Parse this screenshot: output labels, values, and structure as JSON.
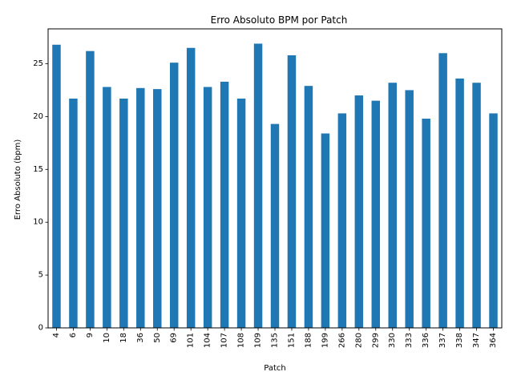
{
  "chart_data": {
    "type": "bar",
    "title": "Erro Absoluto BPM por Patch",
    "xlabel": "Patch",
    "ylabel": "Erro Absoluto (bpm)",
    "categories": [
      "4",
      "6",
      "9",
      "10",
      "18",
      "36",
      "50",
      "69",
      "101",
      "104",
      "107",
      "108",
      "109",
      "135",
      "151",
      "188",
      "199",
      "266",
      "280",
      "299",
      "330",
      "333",
      "336",
      "337",
      "338",
      "347",
      "364"
    ],
    "values": [
      26.8,
      21.7,
      26.2,
      22.8,
      21.7,
      22.7,
      22.6,
      25.1,
      26.5,
      22.8,
      23.3,
      21.7,
      26.9,
      19.3,
      25.8,
      22.9,
      18.4,
      20.3,
      22.0,
      21.5,
      23.2,
      22.5,
      19.8,
      26.0,
      23.6,
      23.2,
      20.3
    ],
    "ylim": [
      0,
      28.3
    ],
    "yticks": [
      0,
      5,
      10,
      15,
      20,
      25
    ],
    "bar_color": "#1f77b4",
    "grid": false,
    "legend": "none"
  }
}
